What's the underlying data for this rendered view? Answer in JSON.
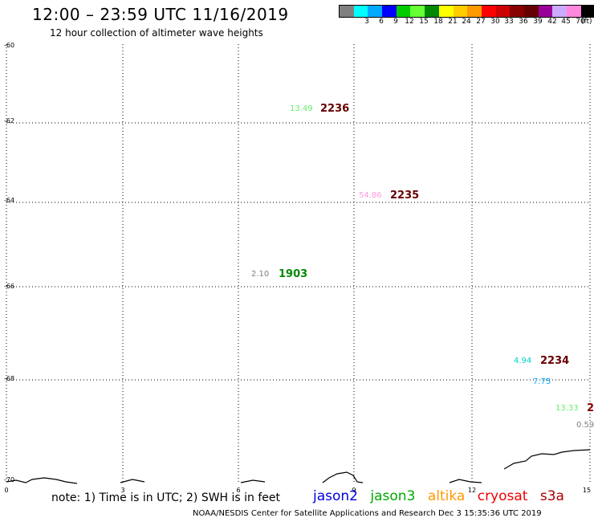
{
  "header": {
    "title": "12:00 – 23:59 UTC 11/16/2019",
    "subtitle": "12 hour collection of altimeter wave heights"
  },
  "legend": {
    "unit": "(ft)",
    "swatches": [
      {
        "color": "#808080",
        "label": ""
      },
      {
        "color": "#00ffff",
        "label": "3"
      },
      {
        "color": "#00aaff",
        "label": "6"
      },
      {
        "color": "#0000ff",
        "label": "9"
      },
      {
        "color": "#00cc00",
        "label": "12"
      },
      {
        "color": "#66ff33",
        "label": "15"
      },
      {
        "color": "#008800",
        "label": "18"
      },
      {
        "color": "#ffff00",
        "label": "21"
      },
      {
        "color": "#ffcc00",
        "label": "24"
      },
      {
        "color": "#ff9900",
        "label": "27"
      },
      {
        "color": "#ff0000",
        "label": "30"
      },
      {
        "color": "#cc0000",
        "label": "33"
      },
      {
        "color": "#880000",
        "label": "36"
      },
      {
        "color": "#660000",
        "label": "39"
      },
      {
        "color": "#990099",
        "label": "42"
      },
      {
        "color": "#ccaaff",
        "label": "45"
      },
      {
        "color": "#ff88dd",
        "label": "70"
      },
      {
        "color": "#000000",
        "label": ""
      }
    ]
  },
  "axes": {
    "y_labels": [
      "-60",
      "-62",
      "-64",
      "-66",
      "-68",
      "-70"
    ],
    "x_labels": [
      "0",
      "3",
      "6",
      "9",
      "12",
      "15"
    ]
  },
  "observations": [
    {
      "value": "13.49",
      "color": "#66ee66",
      "pass": "2236",
      "pass_color": "#660000"
    },
    {
      "value": "54.86",
      "color": "#ff99dd",
      "pass": "2235",
      "pass_color": "#660000"
    },
    {
      "value": "2.10",
      "color": "#808080",
      "pass": "1903",
      "pass_color": "#008800"
    },
    {
      "value": "4.94",
      "color": "#00cccc",
      "pass": "2234",
      "pass_color": "#660000"
    },
    {
      "value": "7.75",
      "color": "#00aaff",
      "pass": "",
      "pass_color": ""
    },
    {
      "value": "13.33",
      "color": "#66ee66",
      "pass": "2",
      "pass_color": "#880000"
    },
    {
      "value": "0.59",
      "color": "#808080",
      "pass": "",
      "pass_color": ""
    }
  ],
  "note": "note: 1) Time is in UTC; 2) SWH is in feet",
  "satellites": [
    {
      "name": "jason2",
      "color": "#0000dd"
    },
    {
      "name": "jason3",
      "color": "#00aa00"
    },
    {
      "name": "altika",
      "color": "#ff9900"
    },
    {
      "name": "cryosat",
      "color": "#ee0000"
    },
    {
      "name": "s3a",
      "color": "#aa0000"
    }
  ],
  "footer": "NOAA/NESDIS Center for Satellite Applications and Research    Dec  3 15:35:36 UTC 2019"
}
